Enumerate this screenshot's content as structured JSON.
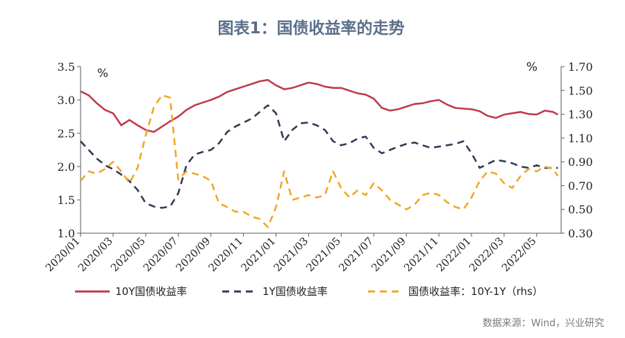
{
  "chart_data": {
    "type": "line",
    "title": "图表1：国债收益率的走势",
    "source": "数据来源：Wind，兴业研究",
    "left_axis": {
      "unit": "%",
      "ylim": [
        1.0,
        3.5
      ],
      "ticks": [
        "1.0",
        "1.5",
        "2.0",
        "2.5",
        "3.0",
        "3.5"
      ]
    },
    "right_axis": {
      "unit": "%",
      "ylim": [
        0.3,
        1.7
      ],
      "ticks": [
        "0.30",
        "0.50",
        "0.70",
        "0.90",
        "1.10",
        "1.30",
        "1.50",
        "1.70"
      ]
    },
    "x_ticks": [
      "2020/01",
      "2020/03",
      "2020/05",
      "2020/07",
      "2020/09",
      "2020/11",
      "2021/01",
      "2021/03",
      "2021/05",
      "2021/07",
      "2021/09",
      "2021/11",
      "2022/01",
      "2022/03",
      "2022/05"
    ],
    "x_range": [
      0,
      29.5
    ],
    "grid": false,
    "legend_position": "bottom",
    "series": [
      {
        "name": "10Y国债收益率",
        "axis": "left",
        "color": "#c0394b",
        "dash": "solid",
        "x": [
          0,
          0.5,
          1,
          1.5,
          2,
          2.5,
          3,
          3.5,
          4,
          4.5,
          5,
          5.5,
          6,
          6.5,
          7,
          7.5,
          8,
          8.5,
          9,
          9.5,
          10,
          10.5,
          11,
          11.5,
          12,
          12.5,
          13,
          13.5,
          14,
          14.5,
          15,
          15.5,
          16,
          16.5,
          17,
          17.5,
          18,
          18.5,
          19,
          19.5,
          20,
          20.5,
          21,
          21.5,
          22,
          22.5,
          23,
          23.5,
          24,
          24.5,
          25,
          25.5,
          26,
          26.5,
          27,
          27.5,
          28,
          28.5,
          29,
          29.3
        ],
        "values": [
          3.13,
          3.07,
          2.95,
          2.85,
          2.8,
          2.62,
          2.7,
          2.62,
          2.55,
          2.52,
          2.6,
          2.68,
          2.75,
          2.85,
          2.92,
          2.96,
          3.0,
          3.05,
          3.12,
          3.16,
          3.2,
          3.24,
          3.28,
          3.3,
          3.22,
          3.16,
          3.18,
          3.22,
          3.26,
          3.24,
          3.2,
          3.18,
          3.18,
          3.14,
          3.1,
          3.08,
          3.02,
          2.88,
          2.84,
          2.86,
          2.9,
          2.94,
          2.95,
          2.98,
          3.0,
          2.93,
          2.88,
          2.87,
          2.86,
          2.83,
          2.76,
          2.73,
          2.78,
          2.8,
          2.82,
          2.79,
          2.78,
          2.84,
          2.82,
          2.78
        ]
      },
      {
        "name": "1Y国债收益率",
        "axis": "left",
        "color": "#2e3b55",
        "dash": "10,7",
        "x": [
          0,
          0.5,
          1,
          1.5,
          2,
          2.5,
          3,
          3.5,
          4,
          4.5,
          5,
          5.5,
          6,
          6.5,
          7,
          7.5,
          8,
          8.5,
          9,
          9.5,
          10,
          10.5,
          11,
          11.5,
          12,
          12.5,
          13,
          13.5,
          14,
          14.5,
          15,
          15.5,
          16,
          16.5,
          17,
          17.5,
          18,
          18.5,
          19,
          19.5,
          20,
          20.5,
          21,
          21.5,
          22,
          22.5,
          23,
          23.5,
          24,
          24.5,
          25,
          25.5,
          26,
          26.5,
          27,
          27.5,
          28,
          28.5,
          29,
          29.3
        ],
        "values": [
          2.38,
          2.25,
          2.12,
          2.02,
          1.96,
          1.88,
          1.78,
          1.65,
          1.45,
          1.4,
          1.38,
          1.4,
          1.6,
          2.02,
          2.18,
          2.22,
          2.25,
          2.35,
          2.52,
          2.6,
          2.66,
          2.72,
          2.82,
          2.92,
          2.8,
          2.38,
          2.55,
          2.65,
          2.66,
          2.62,
          2.55,
          2.38,
          2.32,
          2.35,
          2.42,
          2.45,
          2.28,
          2.2,
          2.25,
          2.3,
          2.34,
          2.36,
          2.32,
          2.28,
          2.3,
          2.32,
          2.34,
          2.38,
          2.2,
          1.98,
          2.04,
          2.1,
          2.08,
          2.05,
          2.0,
          1.98,
          2.02,
          1.98,
          1.98,
          1.98
        ]
      },
      {
        "name": "国债收益率：10Y-1Y（rhs）",
        "axis": "right",
        "color": "#f2a623",
        "dash": "10,7",
        "x": [
          0,
          0.5,
          1,
          1.5,
          2,
          2.5,
          3,
          3.5,
          4,
          4.5,
          5,
          5.5,
          6,
          6.5,
          7,
          7.5,
          8,
          8.5,
          9,
          9.5,
          10,
          10.5,
          11,
          11.5,
          12,
          12.5,
          13,
          13.5,
          14,
          14.5,
          15,
          15.5,
          16,
          16.5,
          17,
          17.5,
          18,
          18.5,
          19,
          19.5,
          20,
          20.5,
          21,
          21.5,
          22,
          22.5,
          23,
          23.5,
          24,
          24.5,
          25,
          25.5,
          26,
          26.5,
          27,
          27.5,
          28,
          28.5,
          29,
          29.3
        ],
        "values": [
          0.74,
          0.82,
          0.8,
          0.84,
          0.9,
          0.82,
          0.72,
          0.85,
          1.12,
          1.36,
          1.46,
          1.44,
          0.75,
          0.82,
          0.8,
          0.78,
          0.74,
          0.55,
          0.52,
          0.48,
          0.48,
          0.44,
          0.42,
          0.35,
          0.52,
          0.82,
          0.58,
          0.6,
          0.62,
          0.6,
          0.62,
          0.82,
          0.68,
          0.6,
          0.66,
          0.62,
          0.72,
          0.66,
          0.58,
          0.54,
          0.5,
          0.54,
          0.62,
          0.64,
          0.62,
          0.56,
          0.52,
          0.5,
          0.6,
          0.74,
          0.82,
          0.8,
          0.72,
          0.68,
          0.78,
          0.84,
          0.82,
          0.86,
          0.84,
          0.78
        ]
      }
    ]
  }
}
